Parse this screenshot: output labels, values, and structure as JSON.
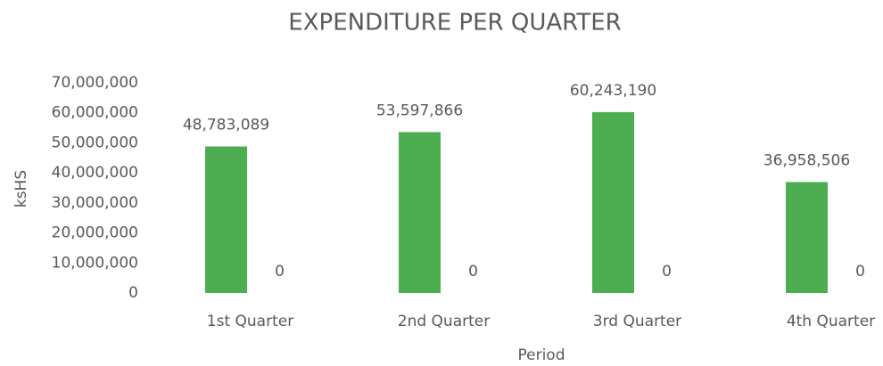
{
  "chart_data": {
    "type": "bar",
    "title": "EXPENDITURE PER QUARTER",
    "x_label": "Period",
    "y_label": "ksHS",
    "categories": [
      "1st Quarter",
      "2nd Quarter",
      "3rd Quarter",
      "4th Quarter"
    ],
    "series": [
      {
        "color": "#4cae50",
        "values": [
          48783089,
          53597866,
          60243190,
          36958506
        ],
        "value_labels": [
          "48,783,089",
          "53,597,866",
          "60,243,190",
          "36,958,506"
        ]
      },
      {
        "color": "#e07b39",
        "values": [
          0,
          0,
          0,
          0
        ]
      }
    ],
    "ylim": [
      0,
      70000000
    ],
    "yticks": [
      0,
      {
        "value": 10000000,
        "label": "10,000,000"
      },
      {
        "value": 20000000,
        "label": "20,000,000"
      },
      {
        "value": 30000000,
        "label": "30,000,000"
      },
      {
        "value": 40000000,
        "label": "40,000,000"
      },
      {
        "value": 50000000,
        "label": "50,000,000"
      },
      {
        "value": 60000000,
        "label": "60,000,000"
      },
      {
        "value": 70000000,
        "label": "70,000,000"
      }
    ],
    "grid": false
  }
}
